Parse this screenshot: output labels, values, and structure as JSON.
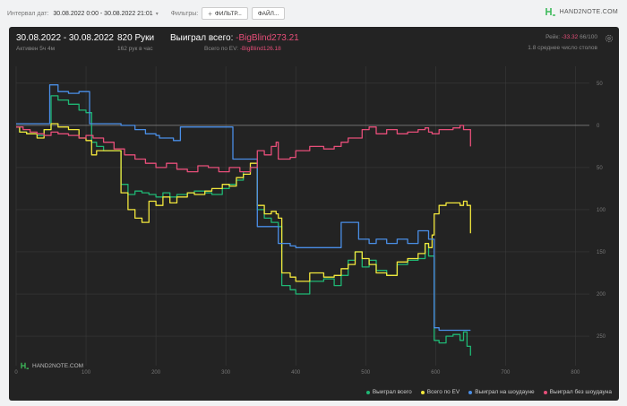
{
  "topbar": {
    "date_label": "Интервал дат:",
    "date_range": "30.08.2022 0:00 - 30.08.2022 21:01",
    "filters_label": "Фильтры:",
    "filter_button": "ФИЛЬТР...",
    "file_button": "ФАЙЛ...",
    "logo_text": "HAND2NOTE.COM"
  },
  "summary": {
    "date_range": "30.08.2022 - 30.08.2022",
    "active": "Активен 5ч 4м",
    "hands": "820 Руки",
    "hands_per_hour": "162 рук в час",
    "won_label": "Выиграл всего:",
    "won_value": "-BigBlind273.21",
    "ev_label": "Всего по EV:",
    "ev_value": "-BigBlind126.18",
    "rake_label": "Рейк:",
    "rake_value": "-33.32",
    "rake_pct": "66/100",
    "tables_text": "1.8 среднее число столов"
  },
  "watermark": "HAND2NOTE.COM",
  "colors": {
    "green": "#1fb774",
    "yellow": "#f2e73c",
    "blue": "#4a8ee6",
    "red": "#e64e79",
    "panel_bg": "#232323",
    "grid": "#3a3a3a",
    "zero_line": "#8a8a8a",
    "accent_red": "#e64e79",
    "logo_green": "#3dba5a"
  },
  "chart_data": {
    "type": "line",
    "xlim": [
      0,
      820
    ],
    "ylim": [
      -285,
      70
    ],
    "y_display": "absolute values of negative results shown on the right axis",
    "x_ticks": [
      0,
      100,
      200,
      300,
      400,
      500,
      600,
      700,
      800
    ],
    "y_ticks": [
      50,
      0,
      -50,
      -100,
      -150,
      -200,
      -250
    ],
    "y_tick_labels": [
      "50",
      "0",
      "50",
      "100",
      "150",
      "200",
      "250"
    ],
    "legend_position": "bottom-right",
    "series": [
      {
        "name": "Выиграл всего",
        "color": "#1fb774",
        "points": [
          [
            0,
            -2
          ],
          [
            5,
            -8
          ],
          [
            15,
            -10
          ],
          [
            30,
            -12
          ],
          [
            40,
            -5
          ],
          [
            50,
            35
          ],
          [
            60,
            30
          ],
          [
            75,
            25
          ],
          [
            90,
            18
          ],
          [
            100,
            15
          ],
          [
            108,
            -20
          ],
          [
            115,
            -25
          ],
          [
            125,
            -30
          ],
          [
            140,
            -30
          ],
          [
            150,
            -70
          ],
          [
            160,
            -82
          ],
          [
            170,
            -78
          ],
          [
            180,
            -80
          ],
          [
            190,
            -82
          ],
          [
            200,
            -85
          ],
          [
            210,
            -80
          ],
          [
            220,
            -85
          ],
          [
            230,
            -82
          ],
          [
            245,
            -80
          ],
          [
            255,
            -78
          ],
          [
            270,
            -80
          ],
          [
            280,
            -82
          ],
          [
            295,
            -75
          ],
          [
            305,
            -70
          ],
          [
            315,
            -65
          ],
          [
            325,
            -55
          ],
          [
            335,
            -50
          ],
          [
            345,
            -100
          ],
          [
            355,
            -110
          ],
          [
            365,
            -115
          ],
          [
            372,
            -115
          ],
          [
            375,
            -120
          ],
          [
            380,
            -190
          ],
          [
            392,
            -195
          ],
          [
            400,
            -200
          ],
          [
            420,
            -185
          ],
          [
            440,
            -182
          ],
          [
            455,
            -190
          ],
          [
            465,
            -178
          ],
          [
            475,
            -160
          ],
          [
            485,
            -150
          ],
          [
            495,
            -168
          ],
          [
            505,
            -160
          ],
          [
            515,
            -172
          ],
          [
            530,
            -178
          ],
          [
            545,
            -165
          ],
          [
            560,
            -160
          ],
          [
            575,
            -158
          ],
          [
            585,
            -140
          ],
          [
            590,
            -155
          ],
          [
            595,
            -155
          ],
          [
            598,
            -255
          ],
          [
            605,
            -258
          ],
          [
            615,
            -250
          ],
          [
            625,
            -248
          ],
          [
            635,
            -255
          ],
          [
            640,
            -245
          ],
          [
            645,
            -262
          ],
          [
            650,
            -273
          ]
        ]
      },
      {
        "name": "Всего по EV",
        "color": "#f2e73c",
        "points": [
          [
            0,
            -2
          ],
          [
            5,
            -8
          ],
          [
            15,
            -10
          ],
          [
            30,
            -15
          ],
          [
            40,
            -5
          ],
          [
            50,
            2
          ],
          [
            60,
            -2
          ],
          [
            75,
            -5
          ],
          [
            90,
            -15
          ],
          [
            100,
            -18
          ],
          [
            108,
            -35
          ],
          [
            115,
            -30
          ],
          [
            125,
            -30
          ],
          [
            140,
            -30
          ],
          [
            150,
            -80
          ],
          [
            160,
            -100
          ],
          [
            170,
            -110
          ],
          [
            180,
            -115
          ],
          [
            190,
            -90
          ],
          [
            200,
            -95
          ],
          [
            210,
            -85
          ],
          [
            220,
            -92
          ],
          [
            230,
            -85
          ],
          [
            245,
            -80
          ],
          [
            255,
            -82
          ],
          [
            270,
            -78
          ],
          [
            280,
            -75
          ],
          [
            295,
            -70
          ],
          [
            305,
            -72
          ],
          [
            315,
            -62
          ],
          [
            325,
            -58
          ],
          [
            335,
            -45
          ],
          [
            345,
            -95
          ],
          [
            355,
            -105
          ],
          [
            365,
            -102
          ],
          [
            372,
            -105
          ],
          [
            375,
            -110
          ],
          [
            380,
            -175
          ],
          [
            392,
            -180
          ],
          [
            400,
            -185
          ],
          [
            420,
            -175
          ],
          [
            440,
            -180
          ],
          [
            455,
            -178
          ],
          [
            465,
            -170
          ],
          [
            475,
            -165
          ],
          [
            485,
            -150
          ],
          [
            495,
            -158
          ],
          [
            505,
            -165
          ],
          [
            515,
            -175
          ],
          [
            530,
            -178
          ],
          [
            545,
            -162
          ],
          [
            560,
            -158
          ],
          [
            575,
            -152
          ],
          [
            585,
            -140
          ],
          [
            590,
            -145
          ],
          [
            595,
            -130
          ],
          [
            598,
            -105
          ],
          [
            605,
            -95
          ],
          [
            615,
            -92
          ],
          [
            625,
            -92
          ],
          [
            635,
            -95
          ],
          [
            640,
            -90
          ],
          [
            645,
            -95
          ],
          [
            650,
            -128
          ]
        ]
      },
      {
        "name": "Выиграл на шоудауне",
        "color": "#4a8ee6",
        "points": [
          [
            0,
            2
          ],
          [
            15,
            2
          ],
          [
            30,
            2
          ],
          [
            40,
            2
          ],
          [
            48,
            48
          ],
          [
            55,
            48
          ],
          [
            60,
            40
          ],
          [
            75,
            38
          ],
          [
            90,
            40
          ],
          [
            100,
            40
          ],
          [
            105,
            2
          ],
          [
            130,
            2
          ],
          [
            150,
            0
          ],
          [
            170,
            -5
          ],
          [
            185,
            -10
          ],
          [
            200,
            -12
          ],
          [
            205,
            -15
          ],
          [
            215,
            -15
          ],
          [
            225,
            -18
          ],
          [
            235,
            -2
          ],
          [
            250,
            -2
          ],
          [
            270,
            -2
          ],
          [
            290,
            -2
          ],
          [
            305,
            -2
          ],
          [
            310,
            -40
          ],
          [
            320,
            -40
          ],
          [
            335,
            -40
          ],
          [
            345,
            -120
          ],
          [
            365,
            -120
          ],
          [
            372,
            -120
          ],
          [
            375,
            -140
          ],
          [
            392,
            -143
          ],
          [
            400,
            -145
          ],
          [
            420,
            -145
          ],
          [
            440,
            -145
          ],
          [
            455,
            -145
          ],
          [
            465,
            -115
          ],
          [
            475,
            -115
          ],
          [
            485,
            -115
          ],
          [
            490,
            -135
          ],
          [
            505,
            -140
          ],
          [
            515,
            -135
          ],
          [
            530,
            -140
          ],
          [
            545,
            -135
          ],
          [
            560,
            -140
          ],
          [
            575,
            -125
          ],
          [
            585,
            -125
          ],
          [
            590,
            -135
          ],
          [
            595,
            -135
          ],
          [
            598,
            -240
          ],
          [
            605,
            -243
          ],
          [
            615,
            -243
          ],
          [
            625,
            -243
          ],
          [
            635,
            -243
          ],
          [
            640,
            -243
          ],
          [
            645,
            -243
          ],
          [
            650,
            -243
          ]
        ]
      },
      {
        "name": "Выиграл без шоудауна",
        "color": "#e64e79",
        "points": [
          [
            0,
            -2
          ],
          [
            10,
            -5
          ],
          [
            20,
            -8
          ],
          [
            30,
            -10
          ],
          [
            40,
            -12
          ],
          [
            50,
            -8
          ],
          [
            60,
            -10
          ],
          [
            75,
            -12
          ],
          [
            90,
            -15
          ],
          [
            100,
            -12
          ],
          [
            110,
            -15
          ],
          [
            125,
            -20
          ],
          [
            140,
            -28
          ],
          [
            155,
            -35
          ],
          [
            170,
            -40
          ],
          [
            185,
            -45
          ],
          [
            200,
            -50
          ],
          [
            215,
            -45
          ],
          [
            230,
            -52
          ],
          [
            245,
            -55
          ],
          [
            260,
            -48
          ],
          [
            275,
            -50
          ],
          [
            290,
            -55
          ],
          [
            305,
            -50
          ],
          [
            320,
            -55
          ],
          [
            335,
            -50
          ],
          [
            345,
            -30
          ],
          [
            355,
            -35
          ],
          [
            365,
            -25
          ],
          [
            372,
            -20
          ],
          [
            375,
            -40
          ],
          [
            380,
            -40
          ],
          [
            392,
            -38
          ],
          [
            400,
            -30
          ],
          [
            420,
            -25
          ],
          [
            440,
            -28
          ],
          [
            455,
            -25
          ],
          [
            465,
            -20
          ],
          [
            475,
            -15
          ],
          [
            485,
            -15
          ],
          [
            495,
            -5
          ],
          [
            505,
            -2
          ],
          [
            515,
            -10
          ],
          [
            530,
            -5
          ],
          [
            545,
            -10
          ],
          [
            560,
            -8
          ],
          [
            575,
            -5
          ],
          [
            585,
            -3
          ],
          [
            590,
            -8
          ],
          [
            595,
            -10
          ],
          [
            605,
            -5
          ],
          [
            615,
            -5
          ],
          [
            625,
            -3
          ],
          [
            635,
            0
          ],
          [
            640,
            -5
          ],
          [
            645,
            -5
          ],
          [
            650,
            -25
          ]
        ]
      }
    ]
  }
}
